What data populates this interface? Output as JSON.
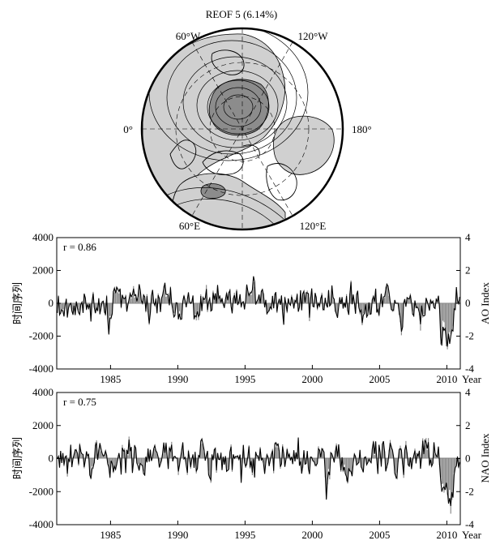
{
  "chart_data": [
    {
      "type": "map",
      "title": "REOF 5 (6.14%)",
      "longitude_labels": [
        "60°W",
        "120°W",
        "0°",
        "180°",
        "60°E",
        "120°E"
      ],
      "colors": {
        "shading_light": "#d0d0d0",
        "shading_dark": "#8c8c8c",
        "outline": "#000000"
      }
    },
    {
      "type": "bar+line",
      "annotation": "r = 0.86",
      "ylabel": "时间序列",
      "y2label": "AO Index",
      "x_ticks": [
        1985,
        1990,
        1995,
        2000,
        2005,
        2010
      ],
      "x_unit_label": "Year",
      "xlim": [
        1981,
        2011
      ],
      "y_ticks": [
        4000,
        2000,
        0,
        -2000,
        -4000
      ],
      "ylim": [
        -4000,
        4000
      ],
      "y2_ticks": [
        4,
        2,
        0,
        -2,
        -4
      ],
      "y2lim": [
        -4,
        4
      ],
      "series": [
        {
          "kind": "bar",
          "color": "#8c8c8c"
        },
        {
          "kind": "line",
          "color": "#000000"
        }
      ],
      "seed": 11
    },
    {
      "type": "bar+line",
      "annotation": "r = 0.75",
      "ylabel": "时间序列",
      "y2label": "NAO Index",
      "x_ticks": [
        1985,
        1990,
        1995,
        2000,
        2005,
        2010
      ],
      "x_unit_label": "Year",
      "xlim": [
        1981,
        2011
      ],
      "y_ticks": [
        4000,
        2000,
        0,
        -2000,
        -4000
      ],
      "ylim": [
        -4000,
        4000
      ],
      "y2_ticks": [
        4,
        2,
        0,
        -2,
        -4
      ],
      "y2lim": [
        -4,
        4
      ],
      "series": [
        {
          "kind": "bar",
          "color": "#8c8c8c"
        },
        {
          "kind": "line",
          "color": "#000000"
        }
      ],
      "seed": 29
    }
  ]
}
